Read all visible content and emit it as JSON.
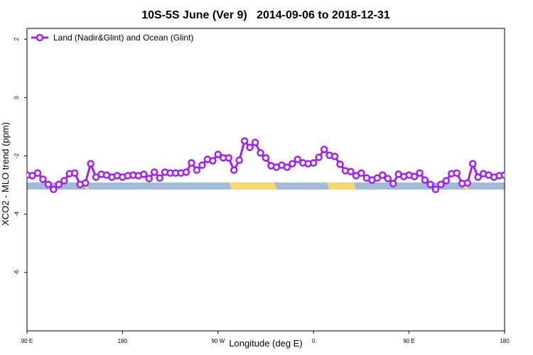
{
  "chart_data": {
    "type": "line",
    "title": "10S-5S June (Ver 9)   2014-09-06 to 2018-12-31",
    "xlabel": "Longitude (deg E)",
    "ylabel": "XCO2 - MLO trend (ppm)",
    "legend": "top-left",
    "x": [
      90,
      95,
      100,
      105,
      110,
      115,
      120,
      125,
      130,
      135,
      140,
      145,
      150,
      155,
      160,
      165,
      170,
      175,
      180,
      185,
      190,
      195,
      200,
      205,
      210,
      215,
      220,
      225,
      230,
      235,
      240,
      245,
      250,
      255,
      260,
      265,
      270,
      275,
      280,
      285,
      290,
      295,
      300,
      305,
      310,
      315,
      320,
      325,
      330,
      335,
      340,
      345,
      350,
      355,
      360,
      365,
      370,
      375,
      380,
      385,
      390,
      395,
      400,
      405,
      410,
      415,
      420,
      425,
      430,
      435,
      440,
      445,
      450,
      455,
      460,
      465,
      470,
      475,
      480,
      485,
      490,
      495,
      500,
      505,
      510,
      515,
      520,
      525,
      530,
      535,
      540
    ],
    "series": [
      {
        "name": "Land (Nadir&Glint) and Ocean (Glint)",
        "color": "#a020f0",
        "values": [
          -2.66,
          -2.68,
          -2.59,
          -2.8,
          -2.98,
          -3.15,
          -2.98,
          -2.85,
          -2.61,
          -2.59,
          -2.98,
          -2.93,
          -2.27,
          -2.73,
          -2.63,
          -2.66,
          -2.73,
          -2.68,
          -2.73,
          -2.68,
          -2.66,
          -2.68,
          -2.63,
          -2.78,
          -2.56,
          -2.76,
          -2.56,
          -2.59,
          -2.59,
          -2.59,
          -2.56,
          -2.24,
          -2.49,
          -2.32,
          -2.12,
          -2.17,
          -1.95,
          -2.07,
          -2.07,
          -2.49,
          -2.15,
          -1.49,
          -1.71,
          -1.54,
          -1.9,
          -2.07,
          -2.34,
          -2.39,
          -2.32,
          -2.39,
          -2.27,
          -2.12,
          -2.24,
          -2.27,
          -2.24,
          -2.05,
          -1.78,
          -1.98,
          -2.02,
          -2.29,
          -2.51,
          -2.54,
          -2.68,
          -2.59,
          -2.76,
          -2.83,
          -2.76,
          -2.66,
          -2.78,
          -2.95,
          -2.63,
          -2.71,
          -2.66,
          -2.71,
          -2.59,
          -2.83,
          -2.98,
          -3.15,
          -2.98,
          -2.85,
          -2.61,
          -2.59,
          -2.95,
          -2.93,
          -2.27,
          -2.73,
          -2.61,
          -2.66,
          -2.73,
          -2.68,
          -2.66
        ]
      }
    ],
    "xlim": [
      90,
      540
    ],
    "xticks": [
      {
        "value": 90,
        "label": "90 E"
      },
      180,
      {
        "value": 270,
        "label": "90 W"
      },
      {
        "value": 360,
        "label": "0"
      },
      {
        "value": 450,
        "label": "90 E"
      },
      {
        "value": 540,
        "label": "180"
      }
    ],
    "ylim": [
      -8,
      2.37
    ],
    "yticks": [
      2,
      0,
      -2,
      -4,
      -6
    ]
  }
}
